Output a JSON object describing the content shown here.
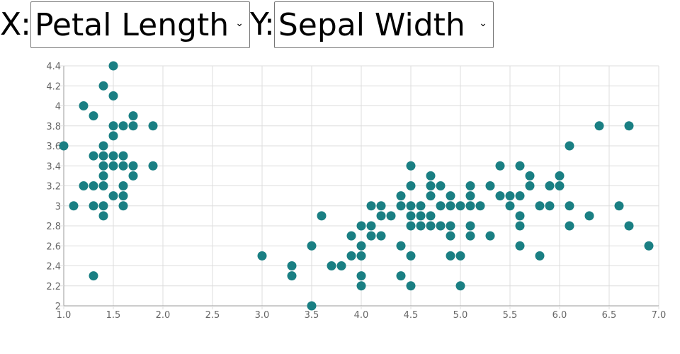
{
  "controls": {
    "x_label": "X:",
    "x_selected": "Petal Length",
    "y_label": "Y:",
    "y_selected": "Sepal Width"
  },
  "colors": {
    "point": "#1a7f83",
    "grid": "#dddddd",
    "axis": "#999999",
    "tick_text": "#666666"
  },
  "chart_data": {
    "type": "scatter",
    "title": "",
    "xlabel": "",
    "ylabel": "",
    "xlim": [
      1.0,
      7.0
    ],
    "ylim": [
      2.0,
      4.4
    ],
    "grid": true,
    "legend": "none",
    "x_ticks": [
      "1.0",
      "1.5",
      "2.0",
      "2.5",
      "3.0",
      "3.5",
      "4.0",
      "4.5",
      "5.0",
      "5.5",
      "6.0",
      "6.5",
      "7.0"
    ],
    "y_ticks": [
      "2",
      "2.2",
      "2.4",
      "2.6",
      "2.8",
      "3",
      "3.2",
      "3.4",
      "3.6",
      "3.8",
      "4",
      "4.2",
      "4.4"
    ],
    "series": [
      {
        "points": [
          [
            1.0,
            3.6
          ],
          [
            1.1,
            3.0
          ],
          [
            1.2,
            4.0
          ],
          [
            1.2,
            3.2
          ],
          [
            1.3,
            3.9
          ],
          [
            1.3,
            3.5
          ],
          [
            1.3,
            3.2
          ],
          [
            1.3,
            3.0
          ],
          [
            1.3,
            2.3
          ],
          [
            1.4,
            4.2
          ],
          [
            1.4,
            3.6
          ],
          [
            1.4,
            3.5
          ],
          [
            1.4,
            3.4
          ],
          [
            1.4,
            3.3
          ],
          [
            1.4,
            3.2
          ],
          [
            1.4,
            3.0
          ],
          [
            1.4,
            2.9
          ],
          [
            1.5,
            4.4
          ],
          [
            1.5,
            4.1
          ],
          [
            1.5,
            3.8
          ],
          [
            1.5,
            3.7
          ],
          [
            1.5,
            3.5
          ],
          [
            1.5,
            3.4
          ],
          [
            1.5,
            3.1
          ],
          [
            1.6,
            3.8
          ],
          [
            1.6,
            3.5
          ],
          [
            1.6,
            3.4
          ],
          [
            1.6,
            3.2
          ],
          [
            1.6,
            3.1
          ],
          [
            1.6,
            3.0
          ],
          [
            1.7,
            3.9
          ],
          [
            1.7,
            3.8
          ],
          [
            1.7,
            3.4
          ],
          [
            1.7,
            3.3
          ],
          [
            1.9,
            3.8
          ],
          [
            1.9,
            3.4
          ],
          [
            3.0,
            2.5
          ],
          [
            3.3,
            2.4
          ],
          [
            3.3,
            2.3
          ],
          [
            3.5,
            2.6
          ],
          [
            3.5,
            2.0
          ],
          [
            3.6,
            2.9
          ],
          [
            3.7,
            2.4
          ],
          [
            3.8,
            2.4
          ],
          [
            3.9,
            2.7
          ],
          [
            3.9,
            2.5
          ],
          [
            4.0,
            2.8
          ],
          [
            4.0,
            2.6
          ],
          [
            4.0,
            2.5
          ],
          [
            4.0,
            2.3
          ],
          [
            4.0,
            2.2
          ],
          [
            4.1,
            3.0
          ],
          [
            4.1,
            2.8
          ],
          [
            4.1,
            2.7
          ],
          [
            4.2,
            3.0
          ],
          [
            4.2,
            2.9
          ],
          [
            4.2,
            2.7
          ],
          [
            4.3,
            2.9
          ],
          [
            4.4,
            3.1
          ],
          [
            4.4,
            3.0
          ],
          [
            4.4,
            2.6
          ],
          [
            4.4,
            2.3
          ],
          [
            4.5,
            3.4
          ],
          [
            4.5,
            3.2
          ],
          [
            4.5,
            3.0
          ],
          [
            4.5,
            2.9
          ],
          [
            4.5,
            2.8
          ],
          [
            4.5,
            2.5
          ],
          [
            4.5,
            2.2
          ],
          [
            4.6,
            3.0
          ],
          [
            4.6,
            2.9
          ],
          [
            4.6,
            2.8
          ],
          [
            4.7,
            3.3
          ],
          [
            4.7,
            3.2
          ],
          [
            4.7,
            3.1
          ],
          [
            4.7,
            2.9
          ],
          [
            4.7,
            2.8
          ],
          [
            4.8,
            3.2
          ],
          [
            4.8,
            3.0
          ],
          [
            4.8,
            2.8
          ],
          [
            4.9,
            3.1
          ],
          [
            4.9,
            3.0
          ],
          [
            4.9,
            2.8
          ],
          [
            4.9,
            2.7
          ],
          [
            4.9,
            2.5
          ],
          [
            5.0,
            3.0
          ],
          [
            5.0,
            2.5
          ],
          [
            5.0,
            2.2
          ],
          [
            5.1,
            3.2
          ],
          [
            5.1,
            3.1
          ],
          [
            5.1,
            3.0
          ],
          [
            5.1,
            2.8
          ],
          [
            5.1,
            2.7
          ],
          [
            5.2,
            3.0
          ],
          [
            5.3,
            3.2
          ],
          [
            5.3,
            2.7
          ],
          [
            5.4,
            3.4
          ],
          [
            5.4,
            3.1
          ],
          [
            5.5,
            3.1
          ],
          [
            5.5,
            3.0
          ],
          [
            5.6,
            3.4
          ],
          [
            5.6,
            3.1
          ],
          [
            5.6,
            2.9
          ],
          [
            5.6,
            2.8
          ],
          [
            5.6,
            2.6
          ],
          [
            5.7,
            3.3
          ],
          [
            5.7,
            3.2
          ],
          [
            5.8,
            3.0
          ],
          [
            5.8,
            2.5
          ],
          [
            5.9,
            3.2
          ],
          [
            5.9,
            3.0
          ],
          [
            6.0,
            3.3
          ],
          [
            6.0,
            3.2
          ],
          [
            6.1,
            3.6
          ],
          [
            6.1,
            3.0
          ],
          [
            6.1,
            2.8
          ],
          [
            6.3,
            2.9
          ],
          [
            6.4,
            3.8
          ],
          [
            6.6,
            3.0
          ],
          [
            6.7,
            3.8
          ],
          [
            6.7,
            2.8
          ],
          [
            6.9,
            2.6
          ]
        ]
      }
    ]
  }
}
